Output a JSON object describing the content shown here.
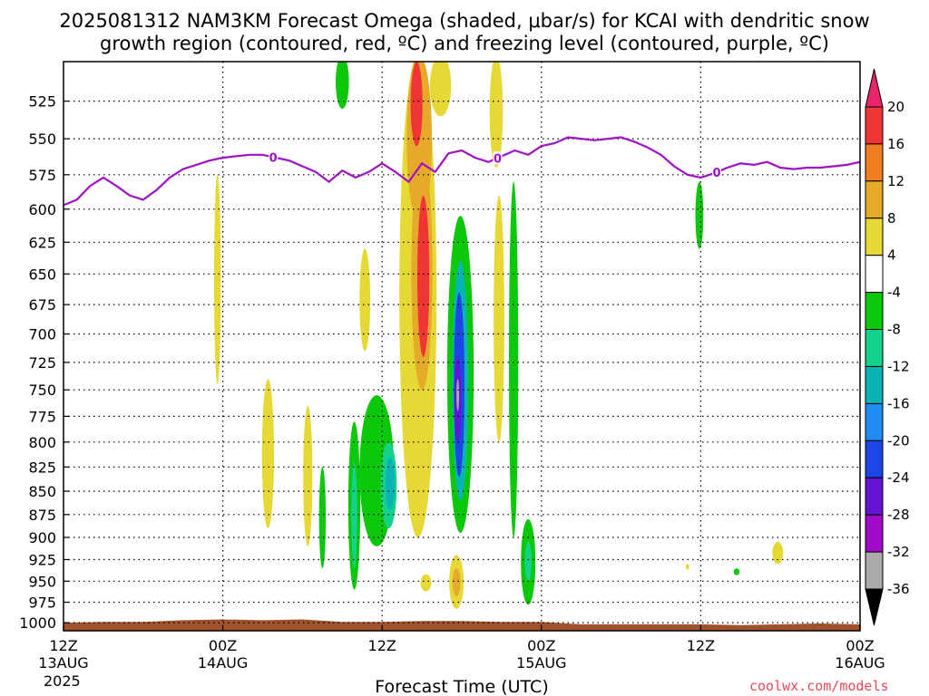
{
  "title_line1": "2025081312 NAM3KM Forecast Omega (shaded, μbar/s) for KCAI with dendritic snow",
  "title_line2": "growth region (contoured, red, ºC) and freezing level (contoured, purple, ºC)",
  "xlabel": "Forecast Time (UTC)",
  "credit": "coolwx.com/models",
  "year_label": "2025",
  "chart_data": {
    "type": "heatmap",
    "title": "2025081312 NAM3KM Forecast Omega (shaded, μbar/s) for KCAI with dendritic snow growth region (contoured, red, ºC) and freezing level (contoured, purple, ºC)",
    "xlabel": "Forecast Time (UTC)",
    "ylabel": "",
    "x_unit": "forecast hour from 2025-08-13 12Z",
    "xlim": [
      0,
      60
    ],
    "ylim": [
      1010,
      500
    ],
    "y_scale": "log-pressure",
    "x_ticks": [
      {
        "hour": 0,
        "line1": "12Z",
        "line2": "13AUG"
      },
      {
        "hour": 12,
        "line1": "00Z",
        "line2": "14AUG"
      },
      {
        "hour": 24,
        "line1": "12Z",
        "line2": ""
      },
      {
        "hour": 36,
        "line1": "00Z",
        "line2": "15AUG"
      },
      {
        "hour": 48,
        "line1": "12Z",
        "line2": ""
      },
      {
        "hour": 60,
        "line1": "00Z",
        "line2": "16AUG"
      }
    ],
    "y_ticks": [
      525,
      550,
      575,
      600,
      625,
      650,
      675,
      700,
      725,
      750,
      775,
      800,
      825,
      850,
      875,
      900,
      925,
      950,
      975,
      1000
    ],
    "grid": true,
    "colorbar": {
      "levels": [
        20,
        16,
        12,
        8,
        4,
        -4,
        -8,
        -12,
        -16,
        -20,
        -24,
        -28,
        -32,
        -36
      ],
      "colors": [
        "#e8246a",
        "#f03535",
        "#f07d1e",
        "#e6aa2a",
        "#e6d835",
        "#ffffff",
        "#0bc80b",
        "#14d28c",
        "#0ab4b4",
        "#1e8cf0",
        "#1e46e6",
        "#6414d2",
        "#a00ac8",
        "#aaaaaa"
      ],
      "top_arrow_color": "#e8246a",
      "bottom_arrow_color": "#000000"
    },
    "freezing_level": {
      "color": "#a010c8",
      "label": "0",
      "label_hours": [
        15.8,
        32.7,
        49.2
      ],
      "x": [
        0,
        1,
        2,
        3,
        4,
        5,
        6,
        7,
        8,
        9,
        10,
        11,
        12,
        13,
        14,
        15,
        16,
        17,
        18,
        19,
        20,
        21,
        22,
        23,
        24,
        25,
        26,
        27,
        28,
        29,
        30,
        31,
        32,
        33,
        34,
        35,
        36,
        37,
        38,
        39,
        40,
        41,
        42,
        43,
        44,
        45,
        46,
        47,
        48,
        49,
        50,
        51,
        52,
        53,
        54,
        55,
        56,
        57,
        58,
        59,
        60
      ],
      "y": [
        597,
        593,
        583,
        577,
        583,
        590,
        593,
        586,
        577,
        571,
        568,
        565,
        563,
        562,
        561,
        561,
        563,
        565,
        569,
        573,
        580,
        572,
        577,
        573,
        567,
        573,
        580,
        567,
        573,
        560,
        558,
        563,
        566,
        562,
        558,
        561,
        555,
        553,
        549,
        550,
        551,
        550,
        549,
        552,
        556,
        561,
        569,
        575,
        577,
        574,
        570,
        567,
        568,
        566,
        570,
        571,
        570,
        570,
        569,
        568,
        566
      ]
    },
    "omega_areas": [
      {
        "hour": 21.0,
        "p_top": 496,
        "p_bottom": 530,
        "half_width": 0.5,
        "value": -6
      },
      {
        "hour": 26.7,
        "p_top": 496,
        "p_bottom": 900,
        "half_width": 1.4,
        "value": 6
      },
      {
        "hour": 26.8,
        "p_top": 496,
        "p_bottom": 610,
        "half_width": 0.95,
        "value": 10
      },
      {
        "hour": 26.6,
        "p_top": 500,
        "p_bottom": 555,
        "half_width": 0.45,
        "value": 18
      },
      {
        "hour": 27.0,
        "p_top": 560,
        "p_bottom": 750,
        "half_width": 0.8,
        "value": 10
      },
      {
        "hour": 27.1,
        "p_top": 590,
        "p_bottom": 720,
        "half_width": 0.45,
        "value": 18
      },
      {
        "hour": 28.4,
        "p_top": 496,
        "p_bottom": 535,
        "half_width": 0.8,
        "value": 6
      },
      {
        "hour": 32.6,
        "p_top": 496,
        "p_bottom": 570,
        "half_width": 0.5,
        "value": 6
      },
      {
        "hour": 32.8,
        "p_top": 590,
        "p_bottom": 800,
        "half_width": 0.4,
        "value": 6
      },
      {
        "hour": 29.9,
        "p_top": 605,
        "p_bottom": 895,
        "half_width": 1.0,
        "value": -6
      },
      {
        "hour": 29.9,
        "p_top": 640,
        "p_bottom": 860,
        "half_width": 0.6,
        "value": -14
      },
      {
        "hour": 29.8,
        "p_top": 665,
        "p_bottom": 835,
        "half_width": 0.4,
        "value": -22
      },
      {
        "hour": 29.7,
        "p_top": 720,
        "p_bottom": 800,
        "half_width": 0.25,
        "value": -27
      },
      {
        "hour": 29.7,
        "p_top": 740,
        "p_bottom": 770,
        "half_width": 0.08,
        "value": -34
      },
      {
        "hour": 23.6,
        "p_top": 755,
        "p_bottom": 910,
        "half_width": 1.3,
        "value": -6
      },
      {
        "hour": 24.5,
        "p_top": 800,
        "p_bottom": 890,
        "half_width": 0.6,
        "value": -12
      },
      {
        "hour": 24.6,
        "p_top": 815,
        "p_bottom": 870,
        "half_width": 0.35,
        "value": -16
      },
      {
        "hour": 22.7,
        "p_top": 630,
        "p_bottom": 715,
        "half_width": 0.4,
        "value": 6
      },
      {
        "hour": 11.6,
        "p_top": 575,
        "p_bottom": 745,
        "half_width": 0.25,
        "value": 6
      },
      {
        "hour": 15.4,
        "p_top": 740,
        "p_bottom": 890,
        "half_width": 0.45,
        "value": 6
      },
      {
        "hour": 18.4,
        "p_top": 765,
        "p_bottom": 910,
        "half_width": 0.35,
        "value": 6
      },
      {
        "hour": 19.5,
        "p_top": 825,
        "p_bottom": 935,
        "half_width": 0.25,
        "value": -6
      },
      {
        "hour": 21.9,
        "p_top": 780,
        "p_bottom": 960,
        "half_width": 0.45,
        "value": -6
      },
      {
        "hour": 21.9,
        "p_top": 820,
        "p_bottom": 935,
        "half_width": 0.22,
        "value": -10
      },
      {
        "hour": 33.9,
        "p_top": 580,
        "p_bottom": 900,
        "half_width": 0.35,
        "value": -6
      },
      {
        "hour": 35.0,
        "p_top": 880,
        "p_bottom": 978,
        "half_width": 0.55,
        "value": -6
      },
      {
        "hour": 35.0,
        "p_top": 905,
        "p_bottom": 950,
        "half_width": 0.25,
        "value": -10
      },
      {
        "hour": 29.6,
        "p_top": 920,
        "p_bottom": 983,
        "half_width": 0.55,
        "value": 6
      },
      {
        "hour": 29.6,
        "p_top": 935,
        "p_bottom": 968,
        "half_width": 0.3,
        "value": 10
      },
      {
        "hour": 27.3,
        "p_top": 942,
        "p_bottom": 962,
        "half_width": 0.4,
        "value": 6
      },
      {
        "hour": 47.9,
        "p_top": 580,
        "p_bottom": 630,
        "half_width": 0.3,
        "value": -6
      },
      {
        "hour": 50.7,
        "p_top": 935,
        "p_bottom": 943,
        "half_width": 0.22,
        "value": -6
      },
      {
        "hour": 53.8,
        "p_top": 905,
        "p_bottom": 930,
        "half_width": 0.4,
        "value": 6
      },
      {
        "hour": 47.0,
        "p_top": 930,
        "p_bottom": 937,
        "half_width": 0.12,
        "value": 6
      }
    ],
    "terrain": {
      "color": "#a0522d",
      "x": [
        0,
        3,
        6,
        9,
        12,
        15,
        18,
        21,
        24,
        27,
        30,
        33,
        36,
        39,
        42,
        45,
        48,
        51,
        54,
        57,
        60
      ],
      "top_pressure": [
        1000,
        999,
        999,
        997,
        996,
        997,
        996,
        999,
        999,
        998,
        998,
        999,
        999,
        1002,
        1002,
        1002,
        1002,
        1003,
        1002,
        1001,
        1002
      ]
    }
  }
}
